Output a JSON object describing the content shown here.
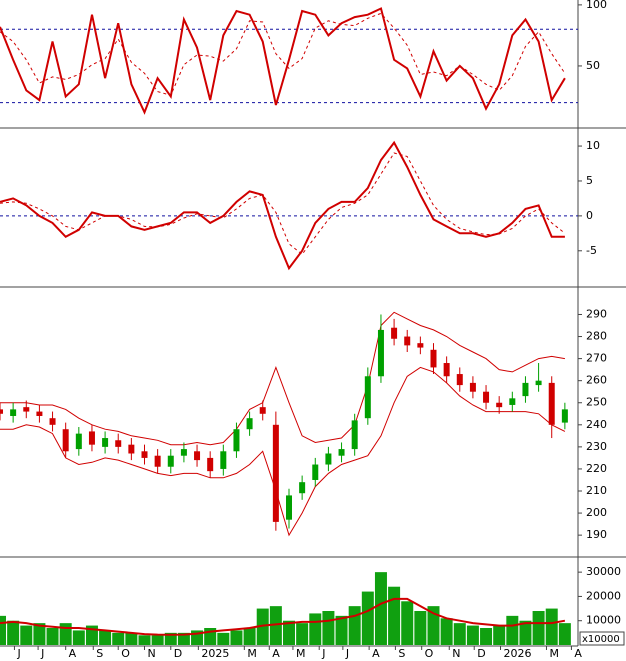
{
  "chart_data": [
    {
      "type": "line",
      "x": [
        0,
        1,
        2,
        3,
        4,
        5,
        6,
        7,
        8,
        9,
        10,
        11,
        12,
        13,
        14,
        15,
        16,
        17,
        18,
        19,
        20,
        21,
        22,
        23,
        24,
        25,
        26,
        27,
        28,
        29,
        30,
        31,
        32,
        33,
        34,
        35,
        36,
        37,
        38,
        39,
        40,
        41,
        42,
        43
      ],
      "xlim": [
        0,
        44
      ],
      "ylim": [
        0,
        104
      ],
      "yticks": [
        50,
        100
      ],
      "levels": [
        80,
        20
      ],
      "level_color": "#1010a0",
      "series": [
        {
          "color": "#d00000",
          "dashed": false,
          "values": [
            82,
            55,
            30,
            22,
            70,
            25,
            35,
            92,
            40,
            85,
            35,
            12,
            40,
            25,
            88,
            65,
            22,
            75,
            95,
            92,
            70,
            18,
            55,
            95,
            92,
            75,
            85,
            90,
            92,
            97,
            55,
            48,
            25,
            62,
            38,
            50,
            40,
            15,
            35,
            75,
            88,
            70,
            22,
            40
          ]
        },
        {
          "color": "#d00000",
          "dashed": true,
          "values": [
            78,
            70,
            55,
            36,
            41,
            39,
            43,
            51,
            56,
            72,
            53,
            44,
            29,
            26,
            51,
            59,
            58,
            54,
            64,
            87,
            86,
            60,
            48,
            56,
            81,
            87,
            84,
            83,
            89,
            93,
            81,
            67,
            43,
            45,
            42,
            50,
            43,
            35,
            30,
            42,
            66,
            78,
            60,
            44
          ]
        }
      ]
    },
    {
      "type": "line",
      "x": [
        0,
        1,
        2,
        3,
        4,
        5,
        6,
        7,
        8,
        9,
        10,
        11,
        12,
        13,
        14,
        15,
        16,
        17,
        18,
        19,
        20,
        21,
        22,
        23,
        24,
        25,
        26,
        27,
        28,
        29,
        30,
        31,
        32,
        33,
        34,
        35,
        36,
        37,
        38,
        39,
        40,
        41,
        42,
        43
      ],
      "xlim": [
        0,
        44
      ],
      "ylim": [
        -9.9,
        12.3
      ],
      "yticks": [
        -5,
        0,
        5,
        10
      ],
      "levels": [
        0
      ],
      "level_color": "#1010a0",
      "series": [
        {
          "color": "#d00000",
          "dashed": false,
          "values": [
            2,
            2.5,
            1.5,
            0,
            -1,
            -3,
            -2,
            0.5,
            0,
            0,
            -1.5,
            -2,
            -1.5,
            -1,
            0.5,
            0.5,
            -1,
            0,
            2,
            3.5,
            3,
            -3,
            -7.5,
            -5,
            -1,
            1,
            2,
            2,
            4,
            8,
            10.5,
            7,
            3,
            -0.5,
            -1.5,
            -2.5,
            -2.5,
            -3,
            -2.5,
            -1,
            1,
            1.5,
            -3,
            -3
          ]
        },
        {
          "color": "#d00000",
          "dashed": true,
          "values": [
            1.8,
            2,
            1.8,
            1,
            0,
            -1.5,
            -2,
            -1,
            0,
            0,
            -0.5,
            -1.5,
            -1.6,
            -1.2,
            -0.3,
            0.3,
            0,
            -0.3,
            1,
            2.5,
            3,
            0.5,
            -4,
            -5.5,
            -3,
            -0.5,
            1.2,
            1.8,
            3,
            6,
            9,
            8.5,
            5,
            1.5,
            -0.5,
            -1.8,
            -2.3,
            -2.7,
            -2.6,
            -1.8,
            0,
            1,
            -1,
            -2.5
          ]
        }
      ]
    },
    {
      "type": "candlestick",
      "x": [
        0,
        1,
        2,
        3,
        4,
        5,
        6,
        7,
        8,
        9,
        10,
        11,
        12,
        13,
        14,
        15,
        16,
        17,
        18,
        19,
        20,
        21,
        22,
        23,
        24,
        25,
        26,
        27,
        28,
        29,
        30,
        31,
        32,
        33,
        34,
        35,
        36,
        37,
        38,
        39,
        40,
        41,
        42,
        43
      ],
      "xlim": [
        0,
        44
      ],
      "ylim": [
        181,
        302
      ],
      "yticks": [
        190,
        200,
        210,
        220,
        230,
        240,
        250,
        260,
        270,
        280,
        290
      ],
      "up_color": "#00a000",
      "down_color": "#d00000",
      "open": [
        247,
        244,
        248,
        246,
        243,
        238,
        229,
        237,
        230,
        233,
        231,
        228,
        226,
        221,
        226,
        228,
        225,
        220,
        228,
        238,
        248,
        240,
        197,
        209,
        215,
        222,
        226,
        229,
        243,
        262,
        284,
        280,
        277,
        274,
        268,
        263,
        259,
        255,
        250,
        249,
        253,
        258,
        259,
        241
      ],
      "high": [
        250,
        250,
        251,
        249,
        246,
        241,
        239,
        240,
        237,
        236,
        234,
        231,
        229,
        229,
        232,
        231,
        228,
        231,
        241,
        246,
        251,
        246,
        211,
        217,
        225,
        230,
        232,
        245,
        266,
        290,
        288,
        283,
        280,
        277,
        271,
        266,
        262,
        258,
        253,
        255,
        262,
        268,
        262,
        250
      ],
      "low": [
        242,
        241,
        243,
        241,
        237,
        225,
        226,
        228,
        227,
        227,
        224,
        222,
        218,
        218,
        223,
        221,
        216,
        217,
        225,
        235,
        242,
        192,
        193,
        206,
        212,
        219,
        223,
        226,
        240,
        259,
        276,
        273,
        272,
        263,
        259,
        255,
        252,
        247,
        245,
        246,
        250,
        255,
        234,
        238
      ],
      "close": [
        245,
        247,
        246,
        244,
        240,
        228,
        236,
        231,
        234,
        230,
        227,
        225,
        221,
        226,
        229,
        224,
        219,
        228,
        238,
        243,
        245,
        196,
        208,
        214,
        222,
        227,
        229,
        242,
        262,
        283,
        279,
        276,
        275,
        266,
        262,
        258,
        255,
        250,
        248,
        252,
        259,
        260,
        240,
        247
      ],
      "bands": [
        {
          "color": "#d00000",
          "values": [
            250,
            250,
            250,
            249,
            249,
            247,
            243,
            240,
            238,
            237,
            235,
            234,
            233,
            231,
            231,
            232,
            231,
            232,
            238,
            247,
            250,
            266,
            250,
            235,
            232,
            233,
            234,
            240,
            258,
            285,
            291,
            288,
            285,
            283,
            280,
            276,
            273,
            270,
            265,
            264,
            267,
            270,
            271,
            270
          ]
        },
        {
          "color": "#d00000",
          "values": [
            238,
            238,
            240,
            239,
            236,
            225,
            222,
            223,
            225,
            224,
            222,
            220,
            218,
            217,
            218,
            218,
            216,
            216,
            218,
            222,
            228,
            210,
            190,
            200,
            212,
            218,
            222,
            224,
            226,
            235,
            250,
            262,
            266,
            264,
            259,
            253,
            249,
            246,
            246,
            246,
            246,
            245,
            240,
            237
          ]
        }
      ]
    },
    {
      "type": "bar",
      "x": [
        0,
        1,
        2,
        3,
        4,
        5,
        6,
        7,
        8,
        9,
        10,
        11,
        12,
        13,
        14,
        15,
        16,
        17,
        18,
        19,
        20,
        21,
        22,
        23,
        24,
        25,
        26,
        27,
        28,
        29,
        30,
        31,
        32,
        33,
        34,
        35,
        36,
        37,
        38,
        39,
        40,
        41,
        42,
        43
      ],
      "xlim": [
        0,
        44
      ],
      "ylim": [
        0,
        35000
      ],
      "yticks": [
        10000,
        20000,
        30000
      ],
      "unit_label": "x10000",
      "color": "#10a010",
      "values": [
        12000,
        10000,
        8000,
        9000,
        7000,
        9000,
        6000,
        8000,
        6000,
        5000,
        5000,
        4000,
        4000,
        5000,
        5000,
        6000,
        7000,
        5000,
        6000,
        7000,
        15000,
        16000,
        10000,
        9000,
        13000,
        14000,
        12000,
        16000,
        22000,
        30000,
        24000,
        18000,
        14000,
        16000,
        11000,
        9000,
        8000,
        7000,
        8000,
        12000,
        10000,
        14000,
        15000,
        9000
      ],
      "series": [
        {
          "color": "#d00000",
          "dashed": false,
          "values": [
            9000,
            9500,
            9000,
            8000,
            7500,
            7000,
            7000,
            6500,
            6000,
            5500,
            5000,
            4500,
            4300,
            4200,
            4300,
            4700,
            5500,
            6000,
            6500,
            7000,
            8000,
            8500,
            9000,
            9500,
            9500,
            10000,
            11000,
            12000,
            14000,
            17000,
            19000,
            19000,
            16000,
            13000,
            11000,
            10000,
            9000,
            8500,
            8000,
            8000,
            9000,
            9000,
            9000,
            10000
          ]
        }
      ],
      "xticks": [
        {
          "value": 1.1,
          "label": "J"
        },
        {
          "value": 2.9,
          "label": "J"
        },
        {
          "value": 5.0,
          "label": "A"
        },
        {
          "value": 7.1,
          "label": "S"
        },
        {
          "value": 9.0,
          "label": "O"
        },
        {
          "value": 11.0,
          "label": "N"
        },
        {
          "value": 13.0,
          "label": "D"
        },
        {
          "value": 15.1,
          "label": "2025"
        },
        {
          "value": 18.6,
          "label": "M"
        },
        {
          "value": 20.5,
          "label": "A"
        },
        {
          "value": 22.3,
          "label": "M"
        },
        {
          "value": 24.3,
          "label": "J"
        },
        {
          "value": 26.1,
          "label": "J"
        },
        {
          "value": 28.1,
          "label": "A"
        },
        {
          "value": 30.1,
          "label": "S"
        },
        {
          "value": 32.1,
          "label": "O"
        },
        {
          "value": 34.2,
          "label": "N"
        },
        {
          "value": 36.1,
          "label": "D"
        },
        {
          "value": 38.1,
          "label": "2026"
        },
        {
          "value": 41.6,
          "label": "M"
        },
        {
          "value": 43.5,
          "label": "A"
        }
      ]
    }
  ]
}
